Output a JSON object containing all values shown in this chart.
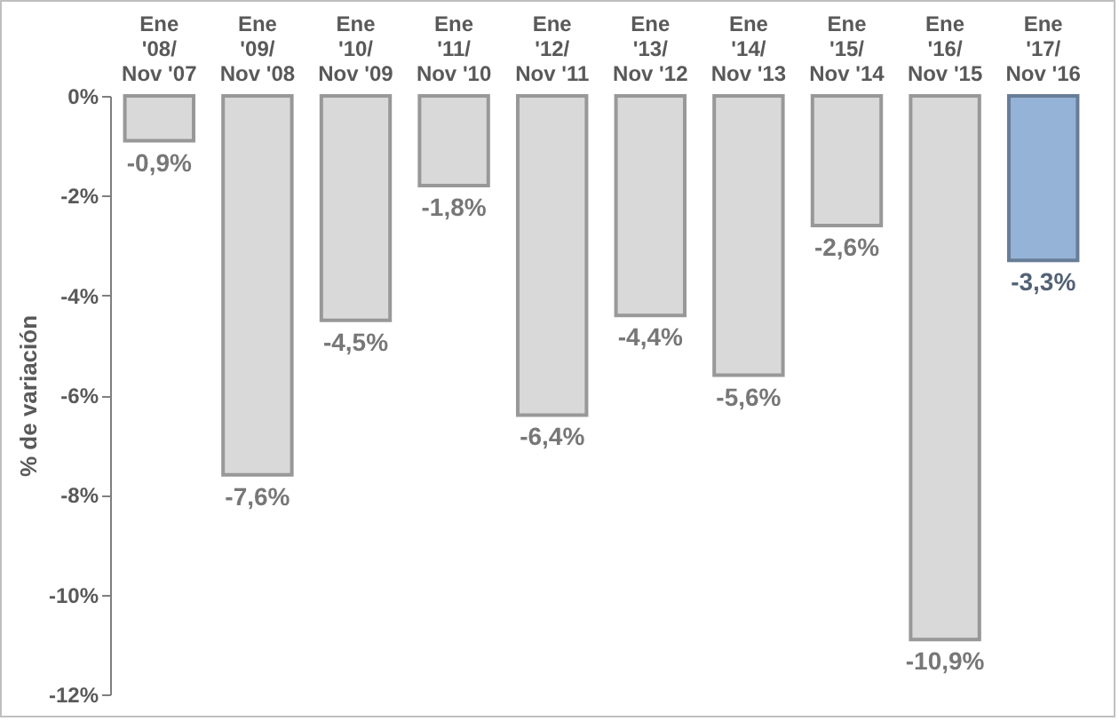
{
  "chart_data": {
    "type": "bar",
    "ylabel": "% de variación",
    "categories": [
      "Ene\n'08/\nNov '07",
      "Ene\n'09/\nNov '08",
      "Ene\n'10/\nNov '09",
      "Ene\n'11/\nNov '10",
      "Ene\n'12/\nNov '11",
      "Ene\n'13/\nNov '12",
      "Ene\n'14/\nNov '13",
      "Ene\n'15/\nNov '14",
      "Ene\n'16/\nNov '15",
      "Ene\n'17/\nNov '16"
    ],
    "values": [
      -0.9,
      -7.6,
      -4.5,
      -1.8,
      -6.4,
      -4.4,
      -5.6,
      -2.6,
      -10.9,
      -3.3
    ],
    "colors": [
      "#d9d9d9",
      "#d9d9d9",
      "#d9d9d9",
      "#d9d9d9",
      "#d9d9d9",
      "#d9d9d9",
      "#d9d9d9",
      "#d9d9d9",
      "#d9d9d9",
      "#95b3d7"
    ],
    "value_labels": [
      "-0,9%",
      "-7,6%",
      "-4,5%",
      "-1,8%",
      "-6,4%",
      "-4,4%",
      "-5,6%",
      "-2,6%",
      "-10,9%",
      "-3,3%"
    ],
    "ylim": [
      -12,
      0
    ],
    "yticks": [
      {
        "value": 0,
        "label": "0%"
      },
      {
        "value": -2,
        "label": "-2%"
      },
      {
        "value": -4,
        "label": "-4%"
      },
      {
        "value": -6,
        "label": "-6%"
      },
      {
        "value": -8,
        "label": "-8%"
      },
      {
        "value": -10,
        "label": "-10%"
      },
      {
        "value": -12,
        "label": "-12%"
      }
    ],
    "grid": false
  }
}
